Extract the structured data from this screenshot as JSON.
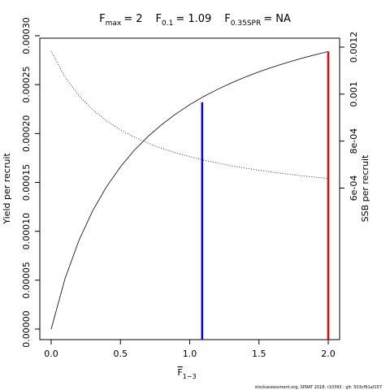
{
  "chart_data": {
    "type": "line",
    "title_items": [
      {
        "symbol": "F",
        "sub": "max",
        "text": "= 2"
      },
      {
        "symbol": "F",
        "sub": "0.1",
        "text": "= 1.09"
      },
      {
        "symbol": "F",
        "sub": "0.35SPR",
        "text": "= NA"
      }
    ],
    "x_label": {
      "symbol": "F",
      "sub": "1−3"
    },
    "y_label": "Yield per recruit",
    "y2_label": "SSB per recruit",
    "footer": "stockassessment.org, SPRAT 2018, r10393 : git: 503cf91af157",
    "x": [
      0,
      0.1,
      0.2,
      0.3,
      0.4,
      0.5,
      0.6,
      0.7,
      0.8,
      0.9,
      1.0,
      1.1,
      1.2,
      1.3,
      1.4,
      1.5,
      1.6,
      1.7,
      1.8,
      1.9,
      2.0
    ],
    "series": [
      {
        "name": "Yield per recruit",
        "color": "#000000",
        "dash": "solid",
        "values": [
          0,
          5.16e-05,
          9.06e-05,
          0.0001212,
          0.0001457,
          0.0001659,
          0.0001828,
          0.0001971,
          0.0002094,
          0.0002201,
          0.0002295,
          0.0002378,
          0.0002451,
          0.0002517,
          0.0002577,
          0.0002631,
          0.000268,
          0.0002725,
          0.0002766,
          0.0002804,
          0.0002839
        ]
      },
      {
        "name": "SSB per recruit",
        "color": "#000000",
        "dash": "dotted",
        "axis": "y2",
        "values": [
          0.001183,
          0.001073,
          0.000994,
          0.000933,
          0.000886,
          0.000848,
          0.000817,
          0.000791,
          0.000769,
          0.00075,
          0.000734,
          0.000719,
          0.000707,
          0.000695,
          0.000685,
          0.000676,
          0.000668,
          0.00066,
          0.000653,
          0.000647,
          0.000641
        ]
      }
    ],
    "reference_lines": [
      {
        "x": 1.09,
        "y": 0.000232,
        "color": "#0000ff"
      },
      {
        "x": 2,
        "y": 0.000284,
        "color": "#ff0000"
      }
    ],
    "xlim": [
      -0.082,
      2.082
    ],
    "xticks": [
      {
        "value": 0,
        "label": "0.0"
      },
      {
        "value": 0.5,
        "label": "0.5"
      },
      {
        "value": 1,
        "label": "1.0"
      },
      {
        "value": 1.5,
        "label": "1.5"
      },
      {
        "value": 2,
        "label": "2.0"
      }
    ],
    "ylim": [
      -1.08e-05,
      0.0002975
    ],
    "yticks": [
      {
        "value": 0,
        "label": "0.00000"
      },
      {
        "value": 5e-05,
        "label": "0.00005"
      },
      {
        "value": 0.0001,
        "label": "0.00010"
      },
      {
        "value": 0.00015,
        "label": "0.00015"
      },
      {
        "value": 0.0002,
        "label": "0.00020"
      },
      {
        "value": 0.00025,
        "label": "0.00025"
      },
      {
        "value": 0.0003,
        "label": "0.00030"
      }
    ],
    "y2lim": [
      -4.48e-05,
      0.001238
    ],
    "y2ticks": [
      {
        "value": 0.0006,
        "label": "6e-04"
      },
      {
        "value": 0.0008,
        "label": "8e-04"
      },
      {
        "value": 0.001,
        "label": "0.001"
      },
      {
        "value": 0.0012,
        "label": "0.0012"
      }
    ]
  }
}
